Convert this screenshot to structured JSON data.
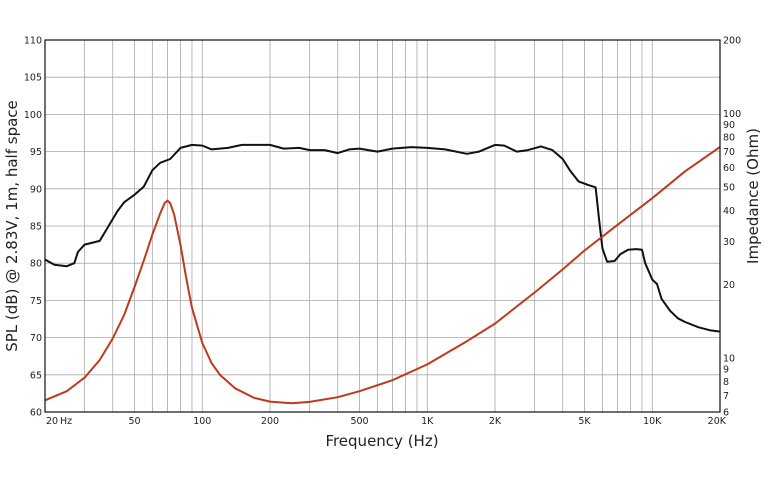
{
  "chart_data": {
    "type": "line",
    "title": "",
    "xlabel": "Frequency (Hz)",
    "ylabel": "SPL (dB) @ 2.83V, 1m, half space",
    "y2label": "Impedance (Ohm)",
    "x_scale": "log",
    "xlim": [
      20,
      20000
    ],
    "ylim": [
      60,
      110
    ],
    "y2_scale": "log",
    "y2lim": [
      6,
      200
    ],
    "grid": true,
    "legend": "none",
    "x_ticks": [
      {
        "value": 20,
        "label": "20"
      },
      {
        "value": 50,
        "label": "50"
      },
      {
        "value": 100,
        "label": "100"
      },
      {
        "value": 200,
        "label": "200"
      },
      {
        "value": 500,
        "label": "500"
      },
      {
        "value": 1000,
        "label": "1K"
      },
      {
        "value": 2000,
        "label": "2K"
      },
      {
        "value": 5000,
        "label": "5K"
      },
      {
        "value": 10000,
        "label": "10K"
      },
      {
        "value": 20000,
        "label": "20K"
      }
    ],
    "x_unit_label": "Hz",
    "y_ticks": [
      60,
      65,
      70,
      75,
      80,
      85,
      90,
      95,
      100,
      105,
      110
    ],
    "y2_ticks": [
      6,
      7,
      8,
      9,
      10,
      20,
      30,
      40,
      50,
      60,
      70,
      80,
      90,
      100,
      200
    ],
    "series": [
      {
        "axis": "left",
        "color": "#111111",
        "points": [
          [
            20,
            80.5
          ],
          [
            22,
            79.8
          ],
          [
            25,
            79.6
          ],
          [
            27,
            80.0
          ],
          [
            28,
            81.5
          ],
          [
            30,
            82.5
          ],
          [
            35,
            83.0
          ],
          [
            38,
            84.8
          ],
          [
            42,
            87.0
          ],
          [
            45,
            88.2
          ],
          [
            50,
            89.2
          ],
          [
            55,
            90.3
          ],
          [
            60,
            92.5
          ],
          [
            65,
            93.5
          ],
          [
            72,
            94.0
          ],
          [
            80,
            95.5
          ],
          [
            90,
            95.9
          ],
          [
            100,
            95.8
          ],
          [
            110,
            95.3
          ],
          [
            130,
            95.5
          ],
          [
            150,
            95.9
          ],
          [
            200,
            95.9
          ],
          [
            230,
            95.4
          ],
          [
            270,
            95.5
          ],
          [
            300,
            95.2
          ],
          [
            350,
            95.2
          ],
          [
            400,
            94.8
          ],
          [
            450,
            95.3
          ],
          [
            500,
            95.4
          ],
          [
            600,
            95.0
          ],
          [
            700,
            95.4
          ],
          [
            850,
            95.6
          ],
          [
            1000,
            95.5
          ],
          [
            1200,
            95.3
          ],
          [
            1500,
            94.7
          ],
          [
            1700,
            95.0
          ],
          [
            2000,
            95.9
          ],
          [
            2200,
            95.8
          ],
          [
            2500,
            95.0
          ],
          [
            2800,
            95.2
          ],
          [
            3200,
            95.7
          ],
          [
            3600,
            95.2
          ],
          [
            4000,
            94.0
          ],
          [
            4300,
            92.5
          ],
          [
            4700,
            91.0
          ],
          [
            5200,
            90.5
          ],
          [
            5600,
            90.2
          ],
          [
            5800,
            86.0
          ],
          [
            6000,
            82.0
          ],
          [
            6300,
            80.2
          ],
          [
            6800,
            80.3
          ],
          [
            7200,
            81.2
          ],
          [
            7800,
            81.8
          ],
          [
            8500,
            81.9
          ],
          [
            9000,
            81.8
          ],
          [
            9300,
            80.0
          ],
          [
            10000,
            77.8
          ],
          [
            10500,
            77.2
          ],
          [
            11000,
            75.2
          ],
          [
            12000,
            73.6
          ],
          [
            13000,
            72.6
          ],
          [
            14000,
            72.1
          ],
          [
            16000,
            71.4
          ],
          [
            18000,
            71.0
          ],
          [
            20000,
            70.8
          ]
        ]
      },
      {
        "axis": "right",
        "color": "#c0391b",
        "points": [
          [
            20,
            6.7
          ],
          [
            25,
            7.3
          ],
          [
            30,
            8.3
          ],
          [
            35,
            9.8
          ],
          [
            40,
            12.0
          ],
          [
            45,
            15.0
          ],
          [
            50,
            19.5
          ],
          [
            55,
            25.0
          ],
          [
            60,
            32.0
          ],
          [
            65,
            39.0
          ],
          [
            68,
            43.0
          ],
          [
            70,
            44.0
          ],
          [
            72,
            43.0
          ],
          [
            75,
            38.5
          ],
          [
            80,
            29.0
          ],
          [
            85,
            21.0
          ],
          [
            90,
            16.0
          ],
          [
            100,
            11.5
          ],
          [
            110,
            9.5
          ],
          [
            120,
            8.5
          ],
          [
            140,
            7.5
          ],
          [
            170,
            6.85
          ],
          [
            200,
            6.62
          ],
          [
            250,
            6.52
          ],
          [
            300,
            6.6
          ],
          [
            400,
            6.9
          ],
          [
            500,
            7.3
          ],
          [
            700,
            8.1
          ],
          [
            1000,
            9.4
          ],
          [
            1500,
            11.7
          ],
          [
            2000,
            13.8
          ],
          [
            3000,
            18.5
          ],
          [
            4000,
            23.0
          ],
          [
            5000,
            27.5
          ],
          [
            7000,
            35.0
          ],
          [
            10000,
            45.0
          ],
          [
            14000,
            58.0
          ],
          [
            20000,
            73.0
          ]
        ]
      }
    ]
  }
}
